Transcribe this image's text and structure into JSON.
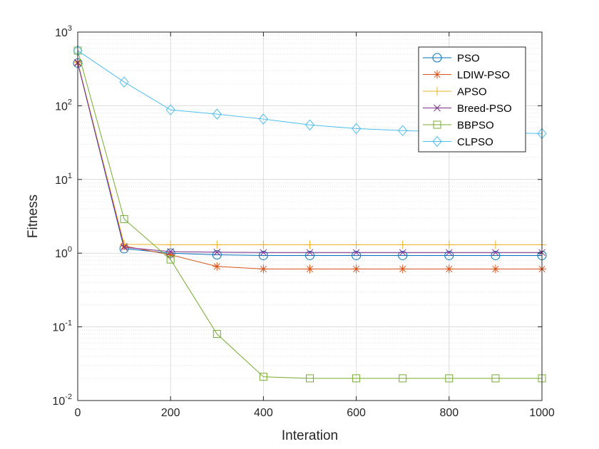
{
  "chart_data": {
    "type": "line",
    "title": "",
    "xlabel": "Interation",
    "ylabel": "Fitness",
    "xlim": [
      0,
      1000
    ],
    "ylim": [
      0.01,
      1000
    ],
    "yscale": "log",
    "grid": true,
    "minor_grid": true,
    "legend_position": "top-right",
    "x_ticks": [
      "0",
      "200",
      "400",
      "600",
      "800",
      "1000"
    ],
    "y_tick_base": "10",
    "y_tick_exponents": [
      "-2",
      "-1",
      "0",
      "1",
      "2",
      "3"
    ],
    "x": [
      0,
      100,
      200,
      300,
      400,
      500,
      600,
      700,
      800,
      900,
      1000
    ],
    "series": [
      {
        "name": "PSO",
        "color": "#0072BD",
        "marker": "circle",
        "values": [
          380,
          1.15,
          1.0,
          0.95,
          0.93,
          0.93,
          0.93,
          0.93,
          0.93,
          0.93,
          0.93
        ]
      },
      {
        "name": "LDIW-PSO",
        "color": "#D95319",
        "marker": "asterisk",
        "values": [
          390,
          1.25,
          0.95,
          0.66,
          0.61,
          0.61,
          0.61,
          0.61,
          0.61,
          0.61,
          0.61
        ]
      },
      {
        "name": "APSO",
        "color": "#EDB120",
        "marker": "plus",
        "values": [
          390,
          1.32,
          1.3,
          1.3,
          1.3,
          1.3,
          1.3,
          1.3,
          1.3,
          1.3,
          1.3
        ]
      },
      {
        "name": "Breed-PSO",
        "color": "#7E2F8E",
        "marker": "x",
        "values": [
          380,
          1.2,
          1.05,
          1.03,
          1.02,
          1.02,
          1.02,
          1.02,
          1.02,
          1.02,
          1.02
        ]
      },
      {
        "name": "BBPSO",
        "color": "#77AC30",
        "marker": "square",
        "values": [
          560,
          2.9,
          0.82,
          0.08,
          0.021,
          0.02,
          0.02,
          0.02,
          0.02,
          0.02,
          0.02
        ]
      },
      {
        "name": "CLPSO",
        "color": "#4DBEEE",
        "marker": "diamond",
        "values": [
          560,
          210,
          88,
          77,
          66,
          55,
          49,
          46,
          44,
          43,
          42
        ]
      }
    ]
  }
}
